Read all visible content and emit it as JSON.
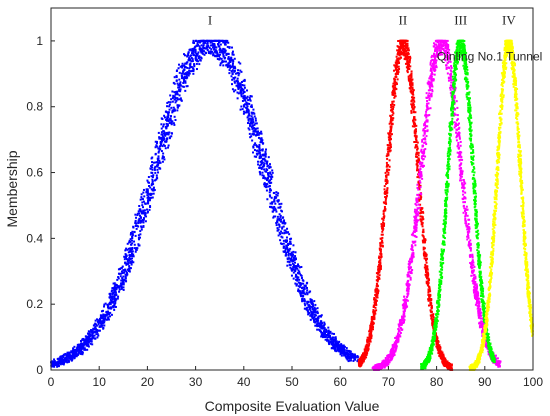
{
  "chart_data": {
    "type": "scatter",
    "xlabel": "Composite Evaluation Value",
    "ylabel": "Membership",
    "xlim": [
      0,
      100
    ],
    "ylim": [
      0,
      1.1
    ],
    "xticks": [
      "0",
      "10",
      "20",
      "30",
      "40",
      "50",
      "60",
      "70",
      "80",
      "90",
      "100"
    ],
    "yticks": [
      "0",
      "0.2",
      "0.4",
      "0.6",
      "0.8",
      "1"
    ],
    "grid": false,
    "series": [
      {
        "name": "I",
        "color": "#0000ff",
        "center": 33,
        "sigma": 11.5,
        "x_range": [
          0,
          63
        ]
      },
      {
        "name": "II",
        "color": "#ff0000",
        "center": 73,
        "sigma": 3.2,
        "x_range": [
          64,
          83
        ]
      },
      {
        "name": "",
        "color": "#ff00ff",
        "center": 81,
        "sigma": 4.2,
        "x_range": [
          67,
          93
        ]
      },
      {
        "name": "III",
        "color": "#00ff00",
        "center": 85,
        "sigma": 2.6,
        "x_range": [
          77,
          92
        ]
      },
      {
        "name": "IV",
        "color": "#ffff00",
        "center": 95,
        "sigma": 2.4,
        "x_range": [
          87,
          100
        ]
      }
    ],
    "annotations": [
      {
        "text": "I",
        "x": 33,
        "y": 1.05
      },
      {
        "text": "II",
        "x": 73,
        "y": 1.05
      },
      {
        "text": "III",
        "x": 85,
        "y": 1.05
      },
      {
        "text": "IV",
        "x": 95,
        "y": 1.05
      },
      {
        "text": "Qinling No.1 Tunnel",
        "x": 91,
        "y": 0.94
      }
    ]
  }
}
